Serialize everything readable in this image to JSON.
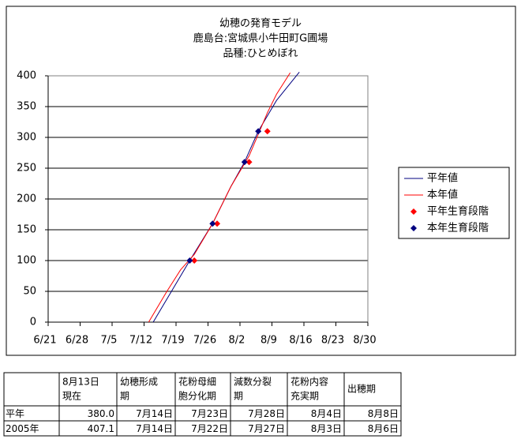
{
  "chart_data": {
    "type": "line",
    "title": [
      "幼穂の発育モデル",
      "鹿島台:宮城県小牛田町G圃場",
      "品種:ひとめぼれ"
    ],
    "xlim": [
      "6/21",
      "8/30"
    ],
    "xticks": [
      "6/21",
      "6/28",
      "7/5",
      "7/12",
      "7/19",
      "7/26",
      "8/2",
      "8/9",
      "8/16",
      "8/23",
      "8/30"
    ],
    "ylim": [
      0,
      400
    ],
    "yticks": [
      0,
      50,
      100,
      150,
      200,
      250,
      300,
      350,
      400
    ],
    "grid": true,
    "legend": "right",
    "series": [
      {
        "name": "平年値",
        "kind": "line",
        "color": "#000080",
        "x": [
          "7/14",
          "7/18",
          "7/22",
          "7/27",
          "7/31",
          "8/3",
          "8/6",
          "8/10",
          "8/15"
        ],
        "values": [
          0,
          50,
          100,
          160,
          220,
          260,
          310,
          360,
          406
        ]
      },
      {
        "name": "本年値",
        "kind": "line",
        "color": "#ff0000",
        "x": [
          "7/13",
          "7/17",
          "7/20",
          "7/23",
          "7/27",
          "7/31",
          "8/4",
          "8/8",
          "8/10",
          "8/13"
        ],
        "values": [
          0,
          50,
          85,
          110,
          160,
          220,
          270,
          340,
          370,
          405
        ]
      },
      {
        "name": "平年生育段階",
        "kind": "scatter",
        "color": "#ff0000",
        "x": [
          "7/23",
          "7/28",
          "8/4",
          "8/8"
        ],
        "values": [
          100,
          160,
          260,
          310
        ]
      },
      {
        "name": "本年生育段階",
        "kind": "scatter",
        "color": "#000080",
        "x": [
          "7/22",
          "7/27",
          "8/3",
          "8/6"
        ],
        "values": [
          100,
          160,
          260,
          310
        ]
      }
    ]
  },
  "table": {
    "header": [
      [
        "8月13日",
        "現在"
      ],
      [
        "幼穂形成",
        "期"
      ],
      [
        "花粉母細",
        "胞分化期"
      ],
      [
        "減数分裂",
        "期"
      ],
      [
        "花粉内容",
        "充実期"
      ],
      [
        "出穂期"
      ]
    ],
    "rows": [
      [
        "平年",
        "380.0",
        "7月14日",
        "7月23日",
        "7月28日",
        "8月4日",
        "8月8日"
      ],
      [
        "2005年",
        "407.1",
        "7月14日",
        "7月22日",
        "7月27日",
        "8月3日",
        "8月6日"
      ]
    ]
  }
}
